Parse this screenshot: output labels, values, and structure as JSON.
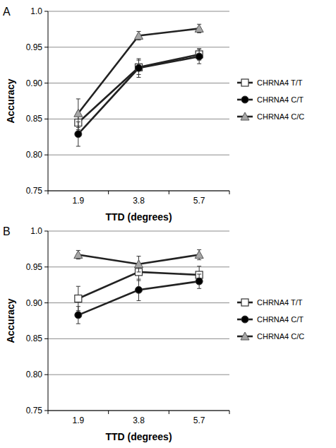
{
  "chart_data": [
    {
      "type": "line",
      "title": "A",
      "x_label": "TTD (degrees)",
      "y_label": "Accuracy",
      "categories": [
        "1.9",
        "3.8",
        "5.7"
      ],
      "ylim": [
        0.75,
        1.0
      ],
      "yticks": [
        0.75,
        {
          "value": 0.8,
          "label": "0.80"
        },
        0.85,
        {
          "value": 0.9,
          "label": "0.90"
        },
        0.95,
        {
          "value": 1.0,
          "label": "1.0"
        }
      ],
      "grid": true,
      "legend": "right",
      "series": [
        {
          "name": "CHRNA4 T/T",
          "color": "#ffffff",
          "marker": "square",
          "values": [
            0.845,
            0.922,
            0.94
          ],
          "errors": [
            0.01,
            0.01,
            0.008
          ]
        },
        {
          "name": "CHRNA4 C/T",
          "color": "#000000",
          "marker": "circle",
          "values": [
            0.829,
            0.921,
            0.937
          ],
          "errors": [
            0.017,
            0.013,
            0.01
          ]
        },
        {
          "name": "CHRNA4 C/C",
          "color": "#a6a6a6",
          "marker": "triangle",
          "values": [
            0.858,
            0.966,
            0.976
          ],
          "errors": [
            0.02,
            0.006,
            0.006
          ]
        }
      ]
    },
    {
      "type": "line",
      "title": "B",
      "x_label": "TTD (degrees)",
      "y_label": "Accuracy",
      "categories": [
        "1.9",
        "3.8",
        "5.7"
      ],
      "ylim": [
        0.75,
        1.0
      ],
      "yticks": [
        0.75,
        {
          "value": 0.8,
          "label": "0.80"
        },
        0.85,
        {
          "value": 0.9,
          "label": "0.90"
        },
        0.95,
        {
          "value": 1.0,
          "label": "1.0"
        }
      ],
      "grid": true,
      "legend": "right",
      "series": [
        {
          "name": "CHRNA4 T/T",
          "color": "#ffffff",
          "marker": "square",
          "values": [
            0.906,
            0.943,
            0.939
          ],
          "errors": [
            0.017,
            0.012,
            0.012
          ]
        },
        {
          "name": "CHRNA4 C/T",
          "color": "#000000",
          "marker": "circle",
          "values": [
            0.883,
            0.918,
            0.93
          ],
          "errors": [
            0.012,
            0.015,
            0.01
          ]
        },
        {
          "name": "CHRNA4 C/C",
          "color": "#a6a6a6",
          "marker": "triangle",
          "values": [
            0.967,
            0.954,
            0.967
          ],
          "errors": [
            0.006,
            0.011,
            0.007
          ]
        }
      ]
    }
  ]
}
